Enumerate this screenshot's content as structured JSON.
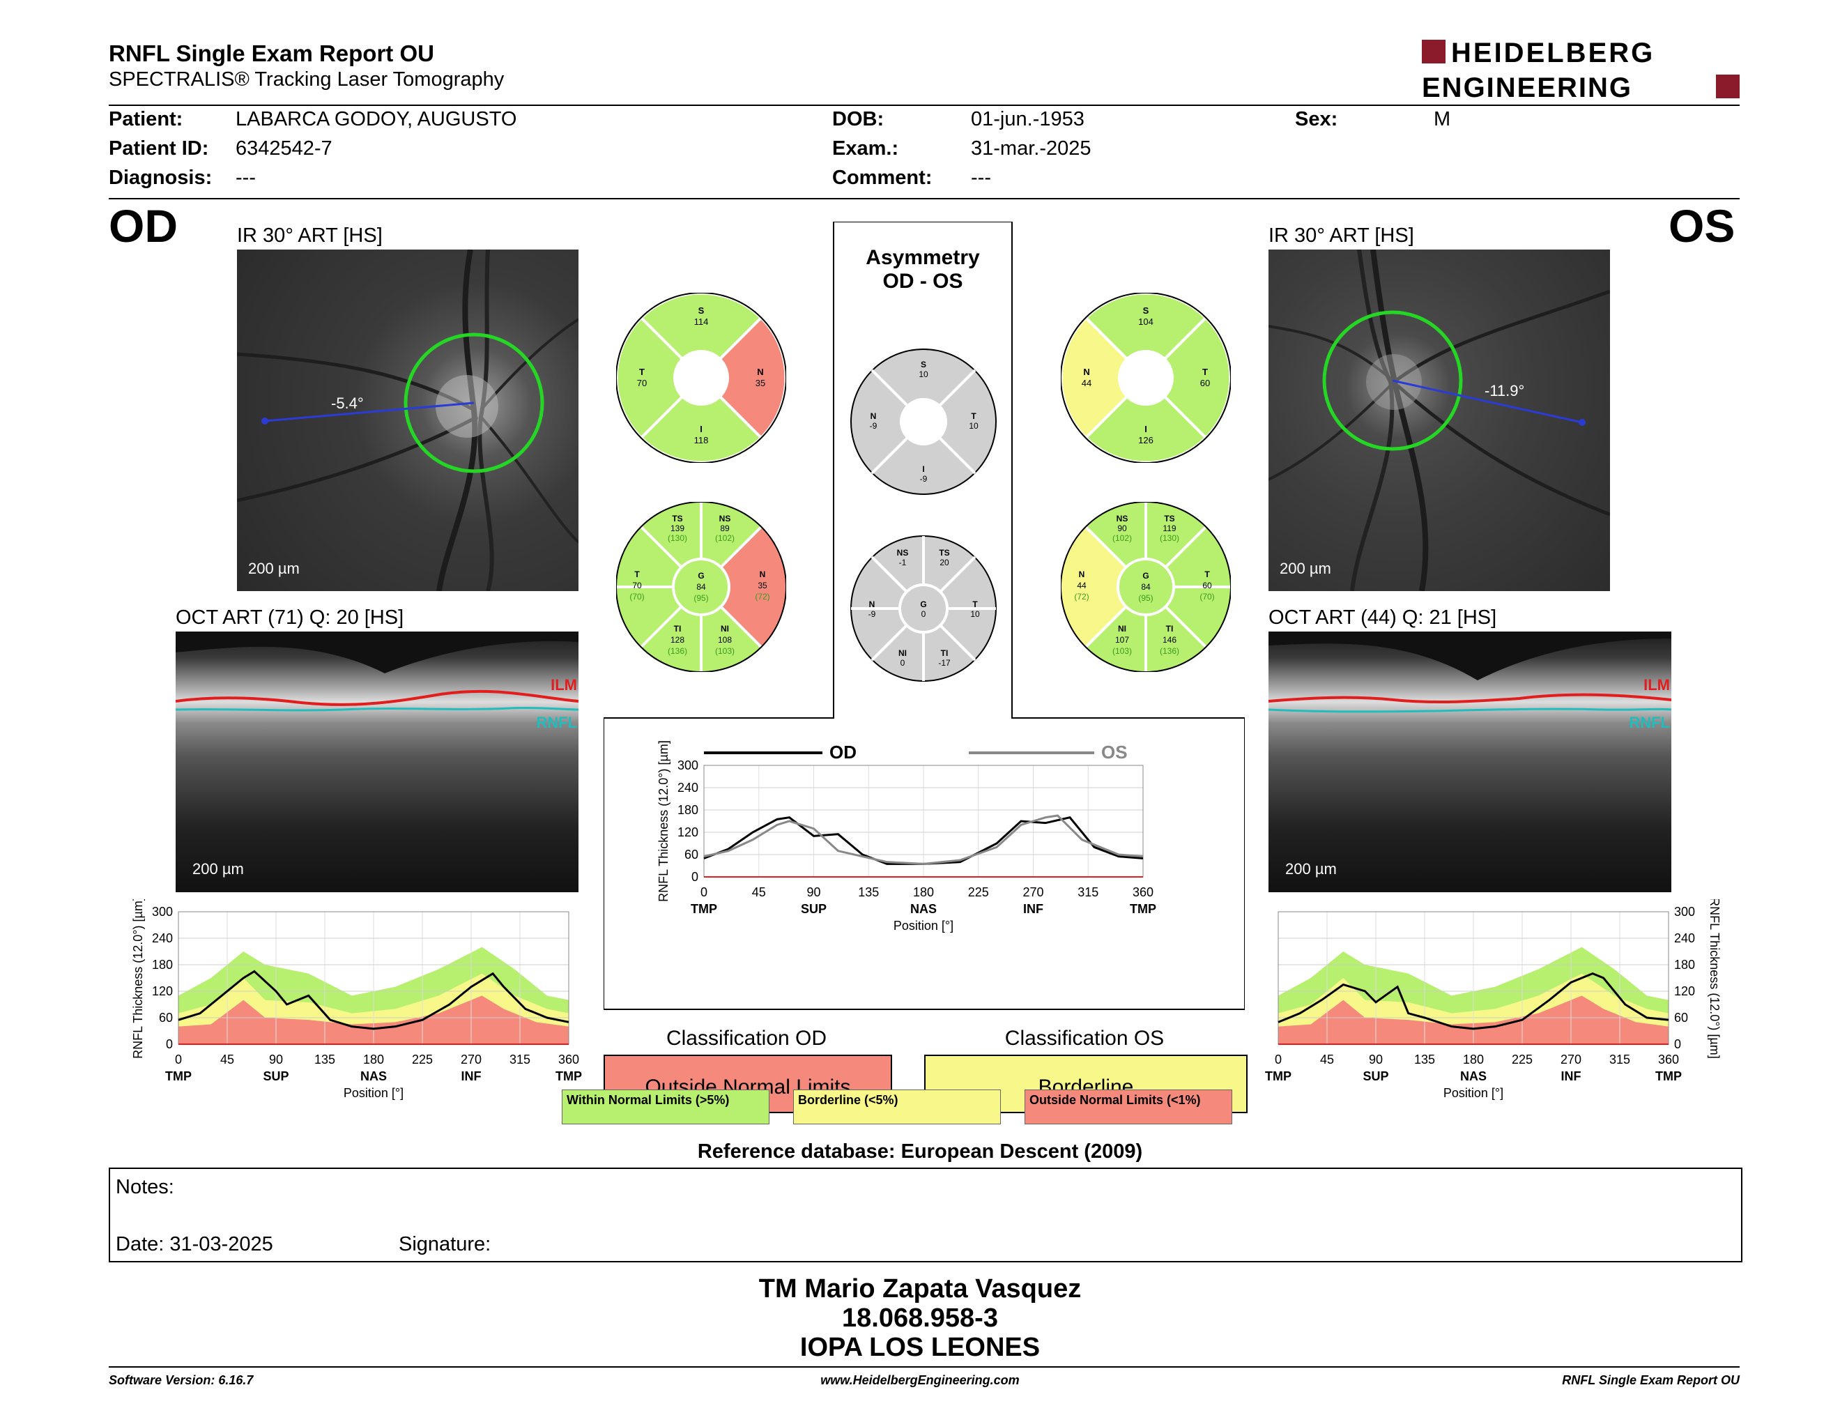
{
  "header": {
    "title": "RNFL Single Exam Report OU",
    "subtitle": "SPECTRALIS® Tracking Laser Tomography",
    "logo_line1": "HEIDELBERG",
    "logo_line2": "ENGINEERING",
    "brand_color": "#8b1a2b"
  },
  "patient": {
    "patient_label": "Patient:",
    "patient_value": "LABARCA GODOY, AUGUSTO",
    "id_label": "Patient ID:",
    "id_value": "6342542-7",
    "diagnosis_label": "Diagnosis:",
    "diagnosis_value": "---",
    "dob_label": "DOB:",
    "dob_value": "01-jun.-1953",
    "exam_label": "Exam.:",
    "exam_value": "31-mar.-2025",
    "comment_label": "Comment:",
    "comment_value": "---",
    "sex_label": "Sex:",
    "sex_value": "M"
  },
  "od": {
    "eye": "OD",
    "ir_caption": "IR 30° ART [HS]",
    "ir_angle": "-5.4°",
    "scale": "200 µm",
    "oct_caption": "OCT ART (71) Q: 20 [HS]",
    "ilm": "ILM",
    "rnfl": "RNFL",
    "sectors4": {
      "S": "114",
      "T": "70",
      "N": "35",
      "I": "118"
    },
    "sectors6": {
      "TS": "139",
      "TS_ref": "(130)",
      "NS": "89",
      "NS_ref": "(102)",
      "T": "70",
      "T_ref": "(70)",
      "G": "84",
      "G_ref": "(95)",
      "N": "35",
      "N_ref": "(72)",
      "TI": "128",
      "TI_ref": "(136)",
      "NI": "108",
      "NI_ref": "(103)"
    }
  },
  "os": {
    "eye": "OS",
    "ir_caption": "IR 30° ART [HS]",
    "ir_angle": "-11.9°",
    "scale": "200 µm",
    "oct_caption": "OCT ART (44) Q: 21 [HS]",
    "ilm": "ILM",
    "rnfl": "RNFL",
    "sectors4": {
      "S": "104",
      "N": "44",
      "T": "60",
      "I": "126"
    },
    "sectors6": {
      "NS": "90",
      "NS_ref": "(102)",
      "TS": "119",
      "TS_ref": "(130)",
      "N": "44",
      "N_ref": "(72)",
      "G": "84",
      "G_ref": "(95)",
      "T": "60",
      "T_ref": "(70)",
      "NI": "107",
      "NI_ref": "(103)",
      "TI": "146",
      "TI_ref": "(136)"
    }
  },
  "asymmetry": {
    "title1": "Asymmetry",
    "title2": "OD - OS",
    "sectors4": {
      "S": "10",
      "N": "-9",
      "T": "10",
      "I": "-9"
    },
    "sectors6": {
      "NS": "-1",
      "TS": "20",
      "N": "-9",
      "G": "0",
      "T": "10",
      "NI": "0",
      "TI": "-17"
    }
  },
  "chart_data": [
    {
      "type": "line",
      "ylabel": "RNFL Thickness (12.0°) [µm]",
      "xlabel": "Position [°]",
      "xticks": [
        0,
        45,
        90,
        135,
        180,
        225,
        270,
        315,
        360
      ],
      "xsub": [
        "TMP",
        "SUP",
        "NAS",
        "INF",
        "TMP"
      ],
      "yticks": [
        0,
        60,
        120,
        180,
        240,
        300
      ],
      "ylim": [
        0,
        300
      ],
      "series": [
        {
          "values_x": [
            0,
            20,
            40,
            60,
            70,
            90,
            100,
            120,
            140,
            160,
            180,
            200,
            225,
            250,
            270,
            290,
            300,
            320,
            340,
            360
          ],
          "values_y": [
            55,
            70,
            110,
            150,
            165,
            120,
            90,
            110,
            55,
            40,
            35,
            40,
            55,
            90,
            130,
            160,
            130,
            80,
            60,
            50
          ]
        }
      ]
    },
    {
      "type": "line",
      "ylabel": "RNFL Thickness (12.0°) [µm]",
      "xlabel": "Position [°]",
      "xticks": [
        0,
        45,
        90,
        135,
        180,
        225,
        270,
        315,
        360
      ],
      "xsub": [
        "TMP",
        "SUP",
        "NAS",
        "INF",
        "TMP"
      ],
      "yticks": [
        0,
        60,
        120,
        180,
        240,
        300
      ],
      "ylim": [
        0,
        300
      ],
      "legend_od": "OD",
      "legend_os": "OS",
      "series": [
        {
          "name": "OD",
          "values_x": [
            0,
            20,
            40,
            60,
            70,
            90,
            110,
            130,
            150,
            180,
            210,
            240,
            260,
            280,
            300,
            320,
            340,
            360
          ],
          "values_y": [
            50,
            75,
            120,
            155,
            160,
            110,
            115,
            60,
            35,
            35,
            40,
            90,
            150,
            145,
            160,
            80,
            55,
            50
          ]
        },
        {
          "name": "OS",
          "values_x": [
            0,
            20,
            40,
            60,
            70,
            90,
            110,
            130,
            150,
            180,
            210,
            240,
            260,
            280,
            290,
            310,
            340,
            360
          ],
          "values_y": [
            55,
            70,
            100,
            140,
            150,
            130,
            70,
            55,
            40,
            35,
            45,
            80,
            140,
            160,
            165,
            100,
            60,
            55
          ]
        }
      ]
    },
    {
      "type": "line",
      "ylabel": "RNFL Thickness (12.0°) [µm]",
      "xlabel": "Position [°]",
      "xticks": [
        0,
        45,
        90,
        135,
        180,
        225,
        270,
        315,
        360
      ],
      "xsub": [
        "TMP",
        "SUP",
        "NAS",
        "INF",
        "TMP"
      ],
      "yticks": [
        0,
        60,
        120,
        180,
        240,
        300
      ],
      "ylim": [
        0,
        300
      ],
      "series": [
        {
          "values_x": [
            0,
            20,
            40,
            60,
            80,
            90,
            110,
            120,
            135,
            160,
            180,
            200,
            225,
            250,
            270,
            290,
            300,
            320,
            340,
            360
          ],
          "values_y": [
            50,
            70,
            100,
            135,
            120,
            95,
            130,
            70,
            60,
            40,
            35,
            40,
            55,
            100,
            140,
            160,
            150,
            90,
            60,
            55
          ]
        }
      ]
    }
  ],
  "classification": {
    "od_title": "Classification OD",
    "od_value": "Outside Normal Limits",
    "os_title": "Classification OS",
    "os_value": "Borderline",
    "legend_normal": "Within Normal Limits (>5%)",
    "legend_border": "Borderline (<5%)",
    "legend_outside": "Outside Normal Limits (<1%)",
    "color_normal": "#b7f06e",
    "color_border": "#f8f88a",
    "color_outside": "#f58a7c"
  },
  "reference": "Reference database: European Descent (2009)",
  "notes": {
    "label": "Notes:",
    "date": "Date: 31-03-2025",
    "signature": "Signature:"
  },
  "signer": {
    "name": "TM Mario Zapata Vasquez",
    "id": "18.068.958-3",
    "place": "IOPA LOS LEONES"
  },
  "footer": {
    "left": "Software Version: 6.16.7",
    "center": "www.HeidelbergEngineering.com",
    "right": "RNFL Single Exam Report OU"
  }
}
